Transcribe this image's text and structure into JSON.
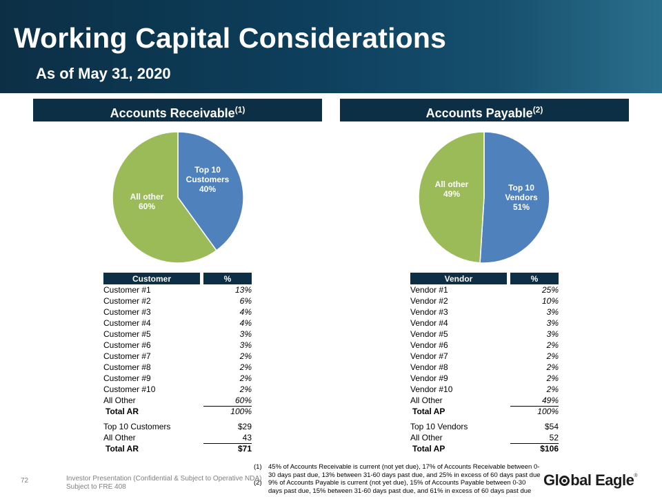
{
  "title": "Working Capital Considerations",
  "subtitle": "As of May 31, 2020",
  "colors": {
    "navy": "#0c2f45",
    "blue_slice": "#4f81bd",
    "green_slice": "#9bbb59"
  },
  "ar": {
    "heading": "Accounts Receivable",
    "heading_note": "(1)",
    "col_name": "Customer",
    "col_pct": "%",
    "rows": [
      {
        "name": "Customer #1",
        "pct": "13%"
      },
      {
        "name": "Customer #2",
        "pct": "6%"
      },
      {
        "name": "Customer #3",
        "pct": "4%"
      },
      {
        "name": "Customer #4",
        "pct": "4%"
      },
      {
        "name": "Customer #5",
        "pct": "3%"
      },
      {
        "name": "Customer #6",
        "pct": "3%"
      },
      {
        "name": "Customer #7",
        "pct": "2%"
      },
      {
        "name": "Customer #8",
        "pct": "2%"
      },
      {
        "name": "Customer #9",
        "pct": "2%"
      },
      {
        "name": "Customer #10",
        "pct": "2%"
      },
      {
        "name": "All Other",
        "pct": "60%"
      }
    ],
    "total_label": "Total AR",
    "total_pct": "100%",
    "summary": [
      {
        "name": "Top 10 Customers",
        "amount": "$29"
      },
      {
        "name": "All Other",
        "amount": "43"
      }
    ],
    "summary_total_label": "Total AR",
    "summary_total": "$71"
  },
  "ap": {
    "heading": "Accounts Payable",
    "heading_note": "(2)",
    "col_name": "Vendor",
    "col_pct": "%",
    "rows": [
      {
        "name": "Vendor #1",
        "pct": "25%"
      },
      {
        "name": "Vendor #2",
        "pct": "10%"
      },
      {
        "name": "Vendor #3",
        "pct": "3%"
      },
      {
        "name": "Vendor #4",
        "pct": "3%"
      },
      {
        "name": "Vendor #5",
        "pct": "3%"
      },
      {
        "name": "Vendor #6",
        "pct": "2%"
      },
      {
        "name": "Vendor #7",
        "pct": "2%"
      },
      {
        "name": "Vendor #8",
        "pct": "2%"
      },
      {
        "name": "Vendor #9",
        "pct": "2%"
      },
      {
        "name": "Vendor #10",
        "pct": "2%"
      },
      {
        "name": "All Other",
        "pct": "49%"
      }
    ],
    "total_label": "Total AP",
    "total_pct": "100%",
    "summary": [
      {
        "name": "Top 10 Vendors",
        "amount": "$54"
      },
      {
        "name": "All Other",
        "amount": "52"
      }
    ],
    "summary_total_label": "Total AP",
    "summary_total": "$106"
  },
  "chart_data": [
    {
      "type": "pie",
      "title": "Accounts Receivable",
      "slices": [
        {
          "label_lines": [
            "Top 10",
            "Customers",
            "40%"
          ],
          "name": "Top 10 Customers",
          "value": 40,
          "color": "#4f81bd"
        },
        {
          "label_lines": [
            "All other",
            "60%"
          ],
          "name": "All other",
          "value": 60,
          "color": "#9bbb59"
        }
      ]
    },
    {
      "type": "pie",
      "title": "Accounts Payable",
      "slices": [
        {
          "label_lines": [
            "Top 10",
            "Vendors",
            "51%"
          ],
          "name": "Top 10 Vendors",
          "value": 51,
          "color": "#4f81bd"
        },
        {
          "label_lines": [
            "All other",
            "49%"
          ],
          "name": "All other",
          "value": 49,
          "color": "#9bbb59"
        }
      ]
    }
  ],
  "footnotes": [
    {
      "num": "(1)",
      "text": "45% of Accounts Receivable is current (not yet due), 17% of Accounts Receivable between 0-30 days past due, 13% between 31-60 days past due, and 25% in excess of 60 days past due"
    },
    {
      "num": "(2)",
      "text": "9% of Accounts Payable is current (not yet due), 15% of Accounts Payable between 0-30 days past due, 15% between 31-60 days past due, and 61% in excess of 60 days past due"
    }
  ],
  "footer": {
    "page_number": "72",
    "line1": "Investor Presentation (Confidential & Subject to Operative NDA)",
    "line2": "Subject to FRE 408"
  },
  "logo": {
    "text_before": "Gl",
    "text_after": "bal Eagle",
    "mark": "®"
  }
}
